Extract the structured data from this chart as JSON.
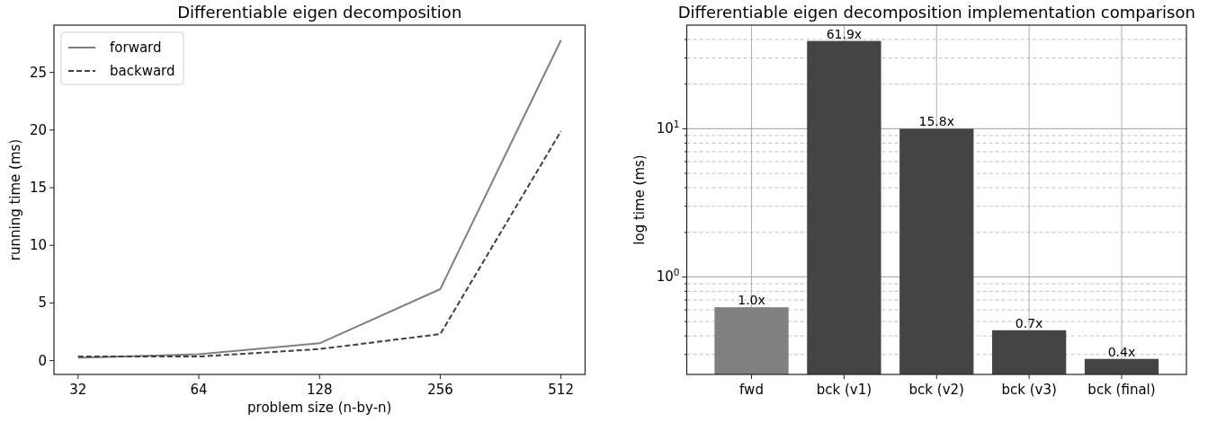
{
  "chart_data": [
    {
      "type": "line",
      "title": "Differentiable eigen decomposition",
      "xlabel": "problem size (n-by-n)",
      "ylabel": "running time (ms)",
      "categories": [
        "32",
        "64",
        "128",
        "256",
        "512"
      ],
      "series": [
        {
          "name": "forward",
          "color": "#808080",
          "line_style": "solid",
          "values": [
            0.25,
            0.55,
            1.5,
            6.2,
            27.8
          ]
        },
        {
          "name": "backward",
          "color": "#404040",
          "line_style": "dashed",
          "values": [
            0.35,
            0.35,
            1.0,
            2.3,
            19.9
          ]
        }
      ],
      "ylim": [
        -1.2,
        29.1
      ],
      "yticks": [
        0,
        5,
        10,
        15,
        20,
        25
      ],
      "legend": "top left"
    },
    {
      "type": "bar",
      "title": "Differentiable eigen decomposition implementation comparison",
      "ylabel": "log time (ms)",
      "categories": [
        "fwd",
        "bck (v1)",
        "bck (v2)",
        "bck (v3)",
        "bck (final)"
      ],
      "values": [
        0.625,
        39.1,
        10.0,
        0.437,
        0.28
      ],
      "colors": [
        "#808080",
        "#444444",
        "#444444",
        "#444444",
        "#444444"
      ],
      "annotations": [
        {
          "text": "1.0x",
          "x": "fwd",
          "y": 0.625
        },
        {
          "text": "61.9x",
          "x": "bck (v1)",
          "y": 39.1
        },
        {
          "text": "15.8x",
          "x": "bck (v2)",
          "y": 10.0
        },
        {
          "text": "0.7x",
          "x": "bck (v3)",
          "y": 0.437
        },
        {
          "text": "0.4x",
          "x": "bck (final)",
          "y": 0.28
        }
      ],
      "log": true,
      "ylim": [
        0.22,
        50
      ],
      "yticks": [
        {
          "value": 0.3,
          "label": null
        },
        {
          "value": 0.4,
          "label": null
        },
        {
          "value": 0.5,
          "label": null
        },
        {
          "value": 0.6,
          "label": null
        },
        {
          "value": 0.7,
          "label": null
        },
        {
          "value": 0.8,
          "label": null
        },
        {
          "value": 0.9,
          "label": null
        },
        {
          "value": 1,
          "label": "10$^{0}$"
        },
        {
          "value": 2,
          "label": null
        },
        {
          "value": 3,
          "label": null
        },
        {
          "value": 4,
          "label": null
        },
        {
          "value": 5,
          "label": null
        },
        {
          "value": 6,
          "label": null
        },
        {
          "value": 7,
          "label": null
        },
        {
          "value": 8,
          "label": null
        },
        {
          "value": 9,
          "label": null
        },
        {
          "value": 10,
          "label": "10$^{1}$"
        },
        {
          "value": 20,
          "label": null
        },
        {
          "value": 30,
          "label": null
        },
        {
          "value": 40,
          "label": null
        }
      ],
      "grid": true
    }
  ]
}
